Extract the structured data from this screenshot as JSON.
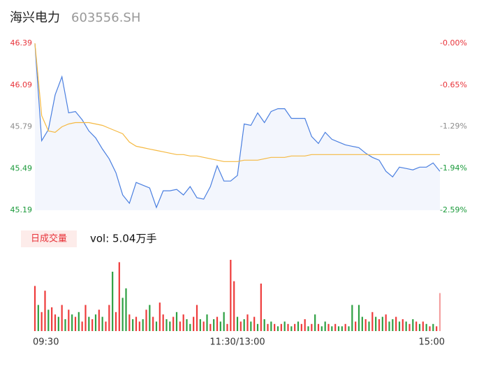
{
  "chart_data": [
    {
      "type": "line",
      "title": "海兴电力",
      "subtitle": "603556.SH",
      "x": [
        0,
        4,
        8,
        12,
        16,
        20,
        24,
        28,
        32,
        36,
        40,
        44,
        48,
        52,
        56,
        60,
        64,
        68,
        72,
        76,
        80,
        84,
        88,
        92,
        96,
        100,
        104,
        108,
        112,
        116,
        120,
        124,
        128,
        132,
        136,
        140,
        144,
        148,
        152,
        156,
        160,
        164,
        168,
        172,
        176,
        180,
        184,
        188,
        192,
        196,
        200,
        204,
        208,
        212,
        216,
        220,
        224,
        228,
        232,
        236,
        240
      ],
      "xlim": [
        0,
        240
      ],
      "ylim": [
        45.19,
        46.39
      ],
      "yticks": [
        46.39,
        46.09,
        45.79,
        45.49,
        45.19
      ],
      "ytick_colors": [
        "#e8333a",
        "#e8333a",
        "#8c8c8c",
        "#1a9a3a",
        "#1a9a3a"
      ],
      "y2lim": [
        -2.59,
        0
      ],
      "y2ticks": [
        {
          "value": 0,
          "label": "-0.00%"
        },
        {
          "value": -0.65,
          "label": "-0.65%"
        },
        {
          "value": -1.29,
          "label": "-1.29%"
        },
        {
          "value": -1.94,
          "label": "-1.94%"
        },
        {
          "value": -2.59,
          "label": "-2.59%"
        }
      ],
      "y2tick_colors": [
        "#e8333a",
        "#e8333a",
        "#8c8c8c",
        "#1a9a3a",
        "#1a9a3a"
      ],
      "area_color": "#f3f6fd",
      "series": [
        {
          "color": "#4a7fe0",
          "values": [
            46.39,
            45.69,
            45.77,
            46.02,
            46.15,
            45.89,
            45.9,
            45.84,
            45.76,
            45.71,
            45.63,
            45.56,
            45.46,
            45.3,
            45.24,
            45.39,
            45.37,
            45.35,
            45.21,
            45.33,
            45.33,
            45.34,
            45.3,
            45.36,
            45.28,
            45.27,
            45.36,
            45.51,
            45.4,
            45.4,
            45.44,
            45.81,
            45.8,
            45.89,
            45.82,
            45.9,
            45.92,
            45.92,
            45.85,
            45.85,
            45.85,
            45.72,
            45.67,
            45.75,
            45.7,
            45.68,
            45.66,
            45.65,
            45.64,
            45.6,
            45.57,
            45.55,
            45.47,
            45.43,
            45.5,
            45.49,
            45.48,
            45.5,
            45.5,
            45.53,
            45.47
          ]
        },
        {
          "color": "#f5b942",
          "values": [
            46.39,
            45.87,
            45.76,
            45.75,
            45.79,
            45.81,
            45.82,
            45.82,
            45.82,
            45.81,
            45.8,
            45.78,
            45.76,
            45.74,
            45.68,
            45.65,
            45.64,
            45.63,
            45.62,
            45.61,
            45.6,
            45.59,
            45.59,
            45.58,
            45.58,
            45.57,
            45.56,
            45.55,
            45.54,
            45.54,
            45.54,
            45.55,
            45.55,
            45.55,
            45.56,
            45.57,
            45.57,
            45.57,
            45.58,
            45.58,
            45.58,
            45.59,
            45.59,
            45.59,
            45.59,
            45.59,
            45.59,
            45.59,
            45.59,
            45.59,
            45.59,
            45.59,
            45.59,
            45.59,
            45.59,
            45.59,
            45.59,
            45.59,
            45.59,
            45.59,
            45.59
          ]
        }
      ]
    },
    {
      "type": "bar",
      "label": "日成交量",
      "annotation": "vol: 5.04万手",
      "x": [
        0,
        2,
        4,
        6,
        8,
        10,
        12,
        14,
        16,
        18,
        20,
        22,
        24,
        26,
        28,
        30,
        32,
        34,
        36,
        38,
        40,
        42,
        44,
        46,
        48,
        50,
        52,
        54,
        56,
        58,
        60,
        62,
        64,
        66,
        68,
        70,
        72,
        74,
        76,
        78,
        80,
        82,
        84,
        86,
        88,
        90,
        92,
        94,
        96,
        98,
        100,
        102,
        104,
        106,
        108,
        110,
        112,
        114,
        116,
        118,
        120,
        122,
        124,
        126,
        128,
        130,
        132,
        134,
        136,
        138,
        140,
        142,
        144,
        146,
        148,
        150,
        152,
        154,
        156,
        158,
        160,
        162,
        164,
        166,
        168,
        170,
        172,
        174,
        176,
        178,
        180,
        182,
        184,
        186,
        188,
        190,
        192,
        194,
        196,
        198,
        200,
        202,
        204,
        206,
        208,
        210,
        212,
        214,
        216,
        218,
        220,
        222,
        224,
        226,
        228,
        230,
        232,
        234,
        236,
        238,
        240
      ],
      "xlim": [
        0,
        240
      ],
      "xticks": [
        {
          "value": 0,
          "label": "09:30"
        },
        {
          "value": 120,
          "label": "11:30/13:00"
        },
        {
          "value": 240,
          "label": "15:00"
        }
      ],
      "ylim": [
        0,
        3000
      ],
      "values": [
        1900,
        1100,
        800,
        1700,
        900,
        1000,
        700,
        600,
        1100,
        500,
        900,
        700,
        600,
        800,
        400,
        1100,
        600,
        500,
        700,
        900,
        600,
        400,
        1100,
        2500,
        800,
        2900,
        1400,
        1800,
        700,
        500,
        600,
        400,
        500,
        900,
        1100,
        600,
        400,
        1200,
        700,
        500,
        400,
        600,
        800,
        400,
        700,
        500,
        300,
        600,
        1100,
        500,
        400,
        700,
        300,
        500,
        600,
        400,
        800,
        300,
        3000,
        2100,
        600,
        400,
        500,
        700,
        400,
        600,
        300,
        2000,
        500,
        300,
        400,
        300,
        200,
        300,
        400,
        300,
        200,
        300,
        400,
        300,
        500,
        200,
        300,
        700,
        300,
        200,
        400,
        300,
        200,
        300,
        200,
        200,
        300,
        200,
        1100,
        400,
        1100,
        600,
        500,
        400,
        800,
        600,
        500,
        600,
        700,
        400,
        500,
        600,
        400,
        500,
        400,
        300,
        500,
        400,
        300,
        400,
        300,
        200,
        300,
        200,
        1600
      ],
      "colors": [
        "#ee3b3b",
        "#2ea043",
        "#ee3b3b",
        "#ee3b3b",
        "#2ea043",
        "#ee3b3b",
        "#ee3b3b",
        "#2ea043",
        "#ee3b3b",
        "#2ea043",
        "#ee3b3b",
        "#2ea043",
        "#ee3b3b",
        "#2ea043",
        "#ee3b3b",
        "#ee3b3b",
        "#2ea043",
        "#ee3b3b",
        "#2ea043",
        "#ee3b3b",
        "#2ea043",
        "#ee3b3b",
        "#ee3b3b",
        "#2ea043",
        "#ee3b3b",
        "#ee3b3b",
        "#2ea043",
        "#2ea043",
        "#ee3b3b",
        "#2ea043",
        "#ee3b3b",
        "#ee3b3b",
        "#2ea043",
        "#ee3b3b",
        "#2ea043",
        "#ee3b3b",
        "#2ea043",
        "#ee3b3b",
        "#ee3b3b",
        "#2ea043",
        "#2ea043",
        "#ee3b3b",
        "#2ea043",
        "#ee3b3b",
        "#ee3b3b",
        "#2ea043",
        "#2ea043",
        "#ee3b3b",
        "#ee3b3b",
        "#2ea043",
        "#ee3b3b",
        "#2ea043",
        "#ee3b3b",
        "#2ea043",
        "#ee3b3b",
        "#2ea043",
        "#2ea043",
        "#ee3b3b",
        "#ee3b3b",
        "#ee3b3b",
        "#2ea043",
        "#ee3b3b",
        "#2ea043",
        "#ee3b3b",
        "#2ea043",
        "#ee3b3b",
        "#2ea043",
        "#ee3b3b",
        "#2ea043",
        "#ee3b3b",
        "#2ea043",
        "#ee3b3b",
        "#2ea043",
        "#ee3b3b",
        "#2ea043",
        "#ee3b3b",
        "#2ea043",
        "#ee3b3b",
        "#2ea043",
        "#ee3b3b",
        "#ee3b3b",
        "#2ea043",
        "#ee3b3b",
        "#2ea043",
        "#ee3b3b",
        "#2ea043",
        "#2ea043",
        "#ee3b3b",
        "#2ea043",
        "#ee3b3b",
        "#2ea043",
        "#2ea043",
        "#ee3b3b",
        "#2ea043",
        "#2ea043",
        "#ee3b3b",
        "#2ea043",
        "#2ea043",
        "#ee3b3b",
        "#2ea043",
        "#ee3b3b",
        "#2ea043",
        "#ee3b3b",
        "#2ea043",
        "#ee3b3b",
        "#2ea043",
        "#2ea043",
        "#ee3b3b",
        "#2ea043",
        "#ee3b3b",
        "#2ea043",
        "#ee3b3b",
        "#2ea043",
        "#ee3b3b",
        "#2ea043",
        "#ee3b3b",
        "#2ea043",
        "#ee3b3b",
        "#2ea043",
        "#ee3b3b",
        "#f4a0a0"
      ]
    }
  ]
}
